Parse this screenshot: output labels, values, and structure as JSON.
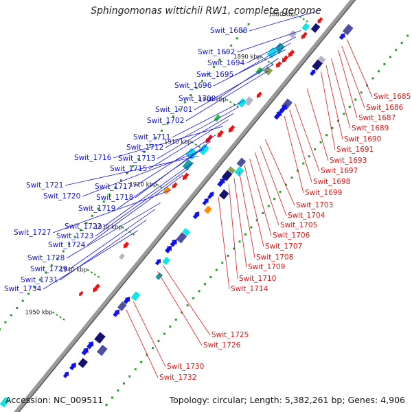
{
  "title": "Sphingomonas wittichii RW1, complete genome",
  "accession": "Accession: NC_009511",
  "summary": "Topology: circular; Length: 5,382,261 bp; Genes: 4,906",
  "colors": {
    "forward": "#1010ee",
    "reverse": "#ee1010",
    "backbone": "#777777",
    "tick": "#2a9a2a",
    "navy": "#14146e",
    "slate": "#5050a0",
    "cyan": "#10e4e4",
    "teal": "#1aa0a0",
    "grey": "#b4b4c4",
    "orange": "#ff8c00",
    "olive": "#8aa050",
    "lime": "#30cc30"
  },
  "scale_marks": [
    "1880 kbp",
    "1890 kbp",
    "1900 kbp",
    "1910 kbp",
    "1920 kbp",
    "1930 kbp",
    "1940 kbp",
    "1950 kbp"
  ],
  "forward_labels": [
    "Swit_1688",
    "Swit_1692",
    "Swit_1694",
    "Swit_1695",
    "Swit_1696",
    "Swit_1700",
    "Swit_1701",
    "Swit_1702",
    "Swit_1711",
    "Swit_1712",
    "Swit_1713",
    "Swit_1716",
    "Swit_1715",
    "Swit_1717",
    "Swit_1721",
    "Swit_1718",
    "Swit_1720",
    "Swit_1719",
    "Swit_1722",
    "Swit_1723",
    "Swit_1727",
    "Swit_1724",
    "Swit_1728",
    "Swit_1729",
    "Swit_1731",
    "Swit_1734"
  ],
  "reverse_labels": [
    "Swit_1685",
    "Swit_1686",
    "Swit_1687",
    "Swit_1689",
    "Swit_1690",
    "Swit_1691",
    "Swit_1693",
    "Swit_1697",
    "Swit_1698",
    "Swit_1699",
    "Swit_1703",
    "Swit_1704",
    "Swit_1705",
    "Swit_1706",
    "Swit_1707",
    "Swit_1708",
    "Swit_1709",
    "Swit_1710",
    "Swit_1714",
    "Swit_1725",
    "Swit_1726",
    "Swit_1730",
    "Swit_1732"
  ],
  "features": [
    {
      "pos": 0.995,
      "ring": 10,
      "len": 14,
      "w": 8,
      "kind": "arrow",
      "dir": 1,
      "color": "forward"
    },
    {
      "pos": 0.985,
      "ring": -20,
      "len": 9,
      "w": 7,
      "kind": "box",
      "color": "orange"
    },
    {
      "pos": 0.94,
      "ring": 22,
      "len": 14,
      "w": 10,
      "kind": "box",
      "color": "slate"
    },
    {
      "pos": 0.925,
      "ring": 22,
      "len": 10,
      "w": 9,
      "kind": "arrow",
      "dir": 1,
      "color": "forward"
    },
    {
      "pos": 0.95,
      "ring": -18,
      "len": 10,
      "w": 7,
      "kind": "arrow",
      "dir": -1,
      "color": "reverse"
    },
    {
      "pos": 0.935,
      "ring": -18,
      "len": 10,
      "w": 7,
      "kind": "arrow",
      "dir": -1,
      "color": "reverse"
    },
    {
      "pos": 0.92,
      "ring": -18,
      "len": 10,
      "w": 7,
      "kind": "arrow",
      "dir": -1,
      "color": "reverse"
    },
    {
      "pos": 0.905,
      "ring": -16,
      "len": 12,
      "w": 9,
      "kind": "box",
      "color": "navy"
    },
    {
      "pos": 0.895,
      "ring": -28,
      "len": 10,
      "w": 8,
      "kind": "box",
      "color": "cyan"
    },
    {
      "pos": 0.88,
      "ring": -22,
      "len": 12,
      "w": 7,
      "kind": "arrow",
      "dir": -1,
      "color": "reverse"
    },
    {
      "pos": 0.87,
      "ring": -36,
      "len": 10,
      "w": 8,
      "kind": "box",
      "color": "grey"
    },
    {
      "pos": 0.865,
      "ring": 20,
      "len": 12,
      "w": 10,
      "kind": "box",
      "color": "grey"
    },
    {
      "pos": 0.855,
      "ring": 20,
      "len": 14,
      "w": 10,
      "kind": "box",
      "color": "navy"
    },
    {
      "pos": 0.84,
      "ring": 22,
      "len": 10,
      "w": 8,
      "kind": "arrow",
      "dir": 1,
      "color": "forward"
    },
    {
      "pos": 0.84,
      "ring": -20,
      "len": 12,
      "w": 8,
      "kind": "arrow",
      "dir": -1,
      "color": "reverse"
    },
    {
      "pos": 0.825,
      "ring": -22,
      "len": 12,
      "w": 8,
      "kind": "arrow",
      "dir": -1,
      "color": "reverse"
    },
    {
      "pos": 0.835,
      "ring": -38,
      "len": 14,
      "w": 10,
      "kind": "box",
      "color": "teal"
    },
    {
      "pos": 0.82,
      "ring": -42,
      "len": 14,
      "w": 10,
      "kind": "box",
      "color": "cyan"
    },
    {
      "pos": 0.81,
      "ring": -24,
      "len": 10,
      "w": 8,
      "kind": "arrow",
      "dir": -1,
      "color": "reverse"
    },
    {
      "pos": 0.79,
      "ring": -30,
      "len": 10,
      "w": 10,
      "kind": "box",
      "color": "olive"
    },
    {
      "pos": 0.78,
      "ring": -40,
      "len": 10,
      "w": 7,
      "kind": "box",
      "color": "lime"
    },
    {
      "pos": 0.765,
      "ring": 22,
      "len": 14,
      "w": 10,
      "kind": "box",
      "color": "slate"
    },
    {
      "pos": 0.755,
      "ring": 22,
      "len": 14,
      "w": 10,
      "kind": "arrow",
      "dir": 1,
      "color": "forward"
    },
    {
      "pos": 0.74,
      "ring": 22,
      "len": 14,
      "w": 10,
      "kind": "arrow",
      "dir": 1,
      "color": "forward"
    },
    {
      "pos": 0.745,
      "ring": -18,
      "len": 10,
      "w": 7,
      "kind": "arrow",
      "dir": -1,
      "color": "reverse"
    },
    {
      "pos": 0.725,
      "ring": -24,
      "len": 12,
      "w": 9,
      "kind": "box",
      "color": "grey"
    },
    {
      "pos": 0.715,
      "ring": -30,
      "len": 12,
      "w": 9,
      "kind": "box",
      "color": "cyan"
    },
    {
      "pos": 0.665,
      "ring": -18,
      "len": 12,
      "w": 8,
      "kind": "arrow",
      "dir": -1,
      "color": "reverse"
    },
    {
      "pos": 0.645,
      "ring": -26,
      "len": 12,
      "w": 8,
      "kind": "arrow",
      "dir": -1,
      "color": "reverse"
    },
    {
      "pos": 0.625,
      "ring": -34,
      "len": 14,
      "w": 8,
      "kind": "arrow",
      "dir": -1,
      "color": "reverse"
    },
    {
      "pos": 0.605,
      "ring": -30,
      "len": 14,
      "w": 10,
      "kind": "box",
      "color": "cyan"
    },
    {
      "pos": 0.585,
      "ring": -40,
      "len": 14,
      "w": 12,
      "kind": "box",
      "color": "cyan"
    },
    {
      "pos": 0.565,
      "ring": -34,
      "len": 14,
      "w": 10,
      "kind": "box",
      "color": "teal"
    },
    {
      "pos": 0.545,
      "ring": -26,
      "len": 12,
      "w": 8,
      "kind": "arrow",
      "dir": -1,
      "color": "reverse"
    },
    {
      "pos": 0.665,
      "ring": -44,
      "len": 10,
      "w": 6,
      "kind": "box",
      "color": "lime"
    },
    {
      "pos": 0.63,
      "ring": 24,
      "len": 12,
      "w": 9,
      "kind": "box",
      "color": "slate"
    },
    {
      "pos": 0.615,
      "ring": 30,
      "len": 12,
      "w": 10,
      "kind": "box",
      "color": "cyan"
    },
    {
      "pos": 0.605,
      "ring": 20,
      "len": 12,
      "w": 10,
      "kind": "box",
      "color": "olive"
    },
    {
      "pos": 0.595,
      "ring": 20,
      "len": 14,
      "w": 10,
      "kind": "box",
      "color": "navy"
    },
    {
      "pos": 0.58,
      "ring": 20,
      "len": 14,
      "w": 10,
      "kind": "arrow",
      "dir": 1,
      "color": "forward"
    },
    {
      "pos": 0.565,
      "ring": 34,
      "len": 12,
      "w": 10,
      "kind": "box",
      "color": "navy"
    },
    {
      "pos": 0.55,
      "ring": 20,
      "len": 12,
      "w": 8,
      "kind": "arrow",
      "dir": 1,
      "color": "forward"
    },
    {
      "pos": 0.535,
      "ring": 20,
      "len": 12,
      "w": 8,
      "kind": "arrow",
      "dir": 1,
      "color": "forward"
    },
    {
      "pos": 0.525,
      "ring": 30,
      "len": 10,
      "w": 8,
      "kind": "box",
      "color": "orange"
    },
    {
      "pos": 0.505,
      "ring": 22,
      "len": 12,
      "w": 9,
      "kind": "arrow",
      "dir": 1,
      "color": "forward"
    },
    {
      "pos": 0.52,
      "ring": -30,
      "len": 10,
      "w": 7,
      "kind": "arrow",
      "dir": -1,
      "color": "reverse"
    },
    {
      "pos": 0.505,
      "ring": -34,
      "len": 10,
      "w": 7,
      "kind": "box",
      "color": "orange"
    },
    {
      "pos": 0.465,
      "ring": 26,
      "len": 14,
      "w": 10,
      "kind": "box",
      "color": "cyan"
    },
    {
      "pos": 0.455,
      "ring": 26,
      "len": 14,
      "w": 10,
      "kind": "box",
      "color": "slate"
    },
    {
      "pos": 0.44,
      "ring": 22,
      "len": 12,
      "w": 10,
      "kind": "arrow",
      "dir": 1,
      "color": "forward"
    },
    {
      "pos": 0.425,
      "ring": 22,
      "len": 12,
      "w": 10,
      "kind": "arrow",
      "dir": 1,
      "color": "forward"
    },
    {
      "pos": 0.405,
      "ring": 30,
      "len": 10,
      "w": 8,
      "kind": "box",
      "color": "cyan"
    },
    {
      "pos": 0.395,
      "ring": 22,
      "len": 10,
      "w": 8,
      "kind": "arrow",
      "dir": 1,
      "color": "forward"
    },
    {
      "pos": 0.375,
      "ring": 36,
      "len": 10,
      "w": 7,
      "kind": "box",
      "color": "teal"
    },
    {
      "pos": 0.38,
      "ring": -30,
      "len": 10,
      "w": 8,
      "kind": "arrow",
      "dir": -1,
      "color": "reverse"
    },
    {
      "pos": 0.36,
      "ring": -24,
      "len": 8,
      "w": 6,
      "kind": "box",
      "color": "grey"
    },
    {
      "pos": 0.32,
      "ring": 28,
      "len": 12,
      "w": 9,
      "kind": "box",
      "color": "cyan"
    },
    {
      "pos": 0.305,
      "ring": 22,
      "len": 12,
      "w": 9,
      "kind": "arrow",
      "dir": 1,
      "color": "forward"
    },
    {
      "pos": 0.29,
      "ring": 22,
      "len": 12,
      "w": 9,
      "kind": "box",
      "color": "slate"
    },
    {
      "pos": 0.275,
      "ring": 22,
      "len": 12,
      "w": 9,
      "kind": "arrow",
      "dir": 1,
      "color": "forward"
    },
    {
      "pos": 0.285,
      "ring": -24,
      "len": 14,
      "w": 8,
      "kind": "arrow",
      "dir": -1,
      "color": "reverse"
    },
    {
      "pos": 0.26,
      "ring": -36,
      "len": 8,
      "w": 6,
      "kind": "arrow",
      "dir": -1,
      "color": "reverse"
    },
    {
      "pos": 0.22,
      "ring": 26,
      "len": 14,
      "w": 11,
      "kind": "box",
      "color": "navy"
    },
    {
      "pos": 0.205,
      "ring": 40,
      "len": 14,
      "w": 10,
      "kind": "box",
      "color": "slate"
    },
    {
      "pos": 0.2,
      "ring": 22,
      "len": 12,
      "w": 10,
      "kind": "arrow",
      "dir": 1,
      "color": "forward"
    },
    {
      "pos": 0.185,
      "ring": 22,
      "len": 12,
      "w": 10,
      "kind": "arrow",
      "dir": 1,
      "color": "forward"
    },
    {
      "pos": 0.165,
      "ring": 30,
      "len": 12,
      "w": 10,
      "kind": "box",
      "color": "navy"
    },
    {
      "pos": 0.15,
      "ring": 22,
      "len": 12,
      "w": 9,
      "kind": "arrow",
      "dir": 1,
      "color": "forward"
    },
    {
      "pos": 0.13,
      "ring": 22,
      "len": 10,
      "w": 8,
      "kind": "arrow",
      "dir": 1,
      "color": "forward"
    },
    {
      "pos": 0.04,
      "ring": 22,
      "len": 14,
      "w": 10,
      "kind": "box",
      "color": "slate"
    },
    {
      "pos": 0.02,
      "ring": -22,
      "len": 14,
      "w": 9,
      "kind": "box",
      "color": "cyan"
    }
  ]
}
